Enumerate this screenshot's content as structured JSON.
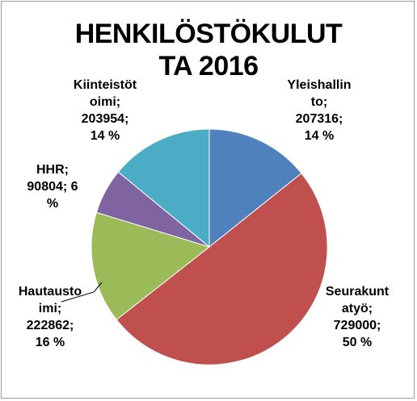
{
  "chart_data": {
    "type": "pie",
    "title": [
      "HENKILÖSTÖKULUT",
      "TA 2016"
    ],
    "slices": [
      {
        "name": "Yleishallinto",
        "value": 207316,
        "percent": 14,
        "color": "#4f81bd",
        "label_lines": [
          "Yleishallin",
          "to;",
          "207316;",
          "14 %"
        ]
      },
      {
        "name": "Seurakuntatyö",
        "value": 729000,
        "percent": 50,
        "color": "#c0504d",
        "label_lines": [
          "Seurakunt",
          "atyö;",
          "729000;",
          "50 %"
        ]
      },
      {
        "name": "Hautausoimi",
        "value": 222862,
        "percent": 16,
        "color": "#9bbb59",
        "label_lines": [
          "Hautausto",
          "imi;",
          "222862;",
          "16 %"
        ]
      },
      {
        "name": "HHR",
        "value": 90804,
        "percent": 6,
        "color": "#8064a2",
        "label_lines": [
          "HHR;",
          "90804; 6",
          "%"
        ]
      },
      {
        "name": "Kiinteistötoimi",
        "value": 203954,
        "percent": 14,
        "color": "#4bacc6",
        "label_lines": [
          "Kiinteistöt",
          "oimi;",
          "203954;",
          "14 %"
        ]
      }
    ]
  }
}
